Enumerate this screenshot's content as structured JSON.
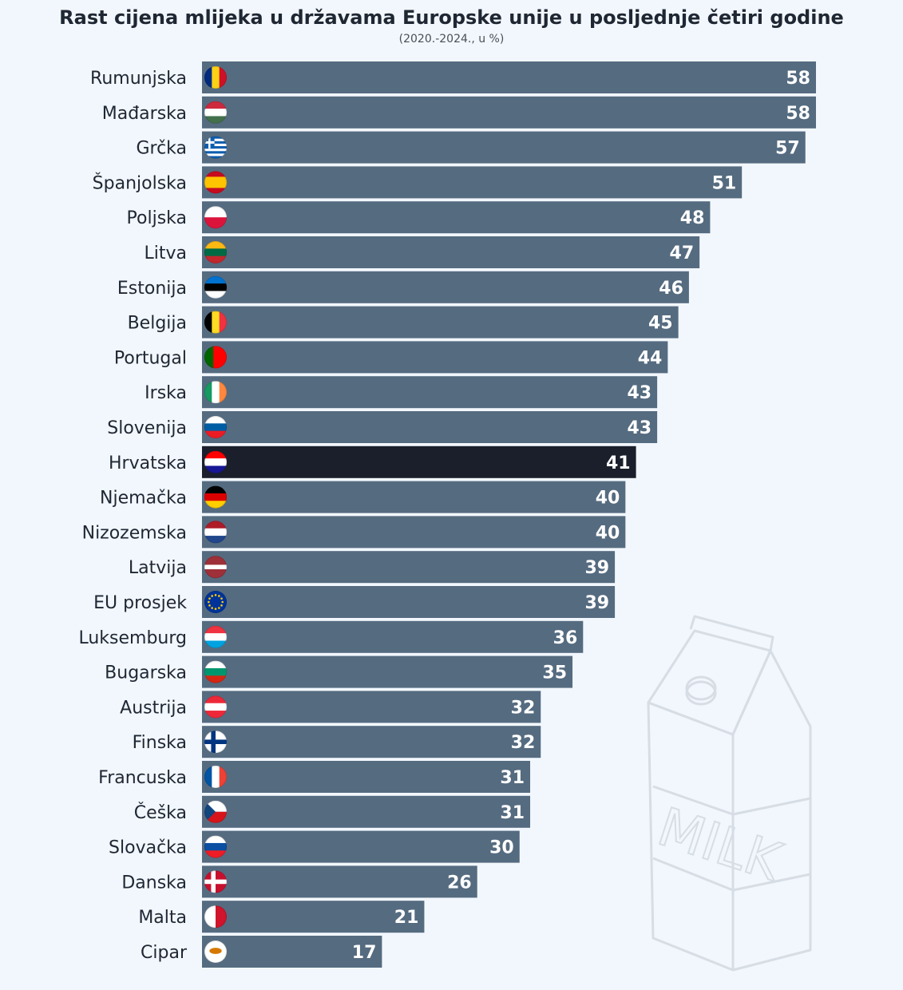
{
  "colors": {
    "bar": "#556b80",
    "highlight": "#1a1f2b",
    "background": "#f2f7fd",
    "text": "#1f2733"
  },
  "chart_data": {
    "type": "bar",
    "orientation": "horizontal",
    "title": "Rast cijena mlijeka u državama Europske unije u posljednje četiri godine",
    "subtitle": "(2020.-2024., u %)",
    "highlight_category": "Hrvatska",
    "categories": [
      "Rumunjska",
      "Mađarska",
      "Grčka",
      "Španjolska",
      "Poljska",
      "Litva",
      "Estonija",
      "Belgija",
      "Portugal",
      "Irska",
      "Slovenija",
      "Hrvatska",
      "Njemačka",
      "Nizozemska",
      "Latvija",
      "EU prosjek",
      "Luksemburg",
      "Bugarska",
      "Austrija",
      "Finska",
      "Francuska",
      "Češka",
      "Slovačka",
      "Danska",
      "Malta",
      "Cipar"
    ],
    "values": [
      58,
      58,
      57,
      51,
      48,
      47,
      46,
      45,
      44,
      43,
      43,
      41,
      40,
      40,
      39,
      39,
      36,
      35,
      32,
      32,
      31,
      31,
      30,
      26,
      21,
      17
    ],
    "flags": [
      "flag-romania-icon",
      "flag-hungary-icon",
      "flag-greece-icon",
      "flag-spain-icon",
      "flag-poland-icon",
      "flag-lithuania-icon",
      "flag-estonia-icon",
      "flag-belgium-icon",
      "flag-portugal-icon",
      "flag-ireland-icon",
      "flag-slovenia-icon",
      "flag-croatia-icon",
      "flag-germany-icon",
      "flag-netherlands-icon",
      "flag-latvia-icon",
      "flag-eu-icon",
      "flag-luxembourg-icon",
      "flag-bulgaria-icon",
      "flag-austria-icon",
      "flag-finland-icon",
      "flag-france-icon",
      "flag-czechia-icon",
      "flag-slovakia-icon",
      "flag-denmark-icon",
      "flag-malta-icon",
      "flag-cyprus-icon"
    ],
    "xlim": [
      0,
      58
    ],
    "grid": false,
    "legend": "none"
  },
  "decoration": {
    "carton_text": "MILK"
  }
}
